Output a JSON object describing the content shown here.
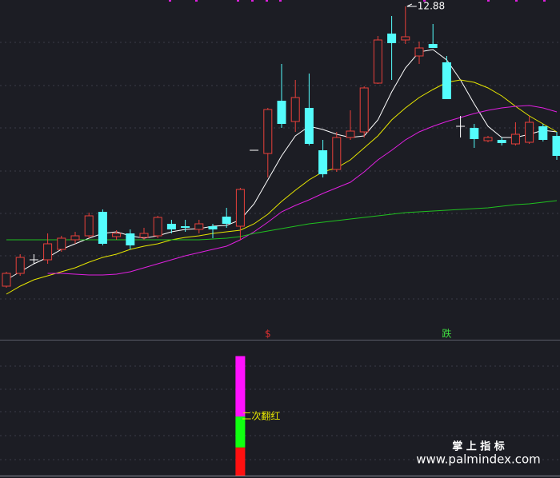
{
  "chart_data": [
    {
      "type": "candlestick",
      "ylim": [
        4.5,
        13.04
      ],
      "high_label": 12.88,
      "up_color": "#e8403a",
      "down_color": "#54fcfc",
      "doji_color": "#ffffff",
      "candles": {
        "open": [
          5.88,
          6.2,
          6.54,
          6.54,
          6.8,
          7.04,
          7.14,
          7.74,
          7.12,
          7.2,
          7.1,
          7.14,
          7.44,
          7.38,
          7.3,
          7.38,
          7.62,
          7.38,
          9.28,
          9.2,
          10.52,
          10.0,
          10.34,
          9.28,
          8.8,
          9.6,
          9.74,
          10.96,
          12.2,
          12.04,
          11.64,
          11.94,
          11.48,
          9.88,
          9.84,
          9.52,
          9.54,
          9.44,
          9.48,
          9.88,
          9.64
        ],
        "close": [
          6.2,
          6.6,
          6.54,
          6.94,
          7.08,
          7.14,
          7.64,
          6.94,
          7.2,
          6.9,
          7.2,
          7.6,
          7.3,
          7.34,
          7.44,
          7.3,
          7.44,
          8.3,
          9.28,
          10.3,
          9.94,
          10.6,
          9.44,
          8.68,
          9.6,
          9.76,
          10.84,
          12.04,
          11.96,
          12.12,
          11.84,
          11.84,
          10.56,
          9.88,
          9.56,
          9.6,
          9.46,
          9.68,
          9.98,
          9.54,
          9.14
        ],
        "high": [
          6.24,
          6.68,
          6.68,
          7.2,
          7.14,
          7.24,
          7.72,
          7.8,
          7.28,
          7.3,
          7.34,
          7.64,
          7.54,
          7.54,
          7.54,
          7.44,
          7.84,
          8.34,
          9.28,
          10.34,
          11.44,
          11.04,
          11.2,
          9.54,
          9.74,
          10.28,
          10.88,
          12.14,
          12.64,
          12.88,
          12.0,
          12.44,
          11.64,
          10.14,
          9.94,
          9.64,
          9.6,
          9.98,
          10.14,
          9.94,
          9.74
        ],
        "low": [
          5.84,
          6.14,
          6.44,
          6.44,
          6.74,
          6.94,
          7.08,
          6.9,
          7.04,
          6.8,
          7.04,
          7.08,
          7.2,
          7.24,
          7.2,
          7.08,
          7.34,
          7.04,
          9.28,
          8.6,
          9.84,
          9.74,
          9.4,
          8.6,
          8.74,
          9.54,
          9.6,
          10.94,
          11.04,
          11.94,
          11.44,
          11.84,
          10.56,
          9.6,
          9.34,
          9.48,
          9.4,
          9.4,
          9.44,
          9.5,
          9.04
        ]
      },
      "moving_averages": [
        {
          "color": "#ffffff",
          "values": [
            6.04,
            6.24,
            6.44,
            6.6,
            6.8,
            6.94,
            7.08,
            7.2,
            7.24,
            7.14,
            7.08,
            7.14,
            7.24,
            7.3,
            7.32,
            7.38,
            7.4,
            7.54,
            7.94,
            8.54,
            9.14,
            9.64,
            9.88,
            9.8,
            9.68,
            9.6,
            9.64,
            10.04,
            10.74,
            11.34,
            11.74,
            11.8,
            11.54,
            11.04,
            10.44,
            9.88,
            9.6,
            9.6,
            9.68,
            9.78,
            9.74
          ]
        },
        {
          "color": "#e6e600",
          "values": [
            5.68,
            5.88,
            6.04,
            6.14,
            6.24,
            6.34,
            6.48,
            6.6,
            6.68,
            6.8,
            6.88,
            6.94,
            7.04,
            7.1,
            7.14,
            7.2,
            7.24,
            7.28,
            7.44,
            7.68,
            8.0,
            8.28,
            8.54,
            8.74,
            8.84,
            9.04,
            9.34,
            9.64,
            10.04,
            10.34,
            10.6,
            10.8,
            10.98,
            11.04,
            10.98,
            10.84,
            10.64,
            10.38,
            10.14,
            9.94,
            9.74
          ]
        },
        {
          "color": "#e020e0",
          "values": [
            null,
            null,
            null,
            6.2,
            6.2,
            6.18,
            6.16,
            6.16,
            6.18,
            6.24,
            6.34,
            6.44,
            6.54,
            6.64,
            6.72,
            6.8,
            6.88,
            7.04,
            7.24,
            7.48,
            7.74,
            7.9,
            8.04,
            8.2,
            8.34,
            8.48,
            8.74,
            9.04,
            9.28,
            9.54,
            9.74,
            9.88,
            10.0,
            10.1,
            10.2,
            10.28,
            10.34,
            10.38,
            10.4,
            10.34,
            10.24
          ]
        },
        {
          "color": "#20c020",
          "values": [
            7.04,
            7.04,
            7.04,
            7.04,
            7.04,
            7.04,
            7.04,
            7.04,
            7.04,
            7.04,
            7.04,
            7.04,
            7.04,
            7.04,
            7.04,
            7.06,
            7.08,
            7.12,
            7.2,
            7.26,
            7.32,
            7.38,
            7.44,
            7.48,
            7.52,
            7.56,
            7.6,
            7.64,
            7.68,
            7.72,
            7.74,
            7.76,
            7.78,
            7.8,
            7.82,
            7.84,
            7.88,
            7.92,
            7.94,
            7.98,
            8.02
          ]
        }
      ],
      "signals": [
        null,
        null,
        null,
        null,
        null,
        null,
        null,
        null,
        null,
        null,
        null,
        null,
        null,
        null,
        null,
        null,
        null,
        null,
        null,
        {
          "text": "$",
          "color": "#e03030"
        },
        null,
        null,
        null,
        null,
        null,
        null,
        null,
        null,
        null,
        null,
        null,
        null,
        {
          "text": "跌",
          "color": "#40e040"
        },
        null,
        null,
        null,
        null,
        null,
        null,
        null,
        null
      ]
    },
    {
      "type": "stacked_bar",
      "ylim": [
        0,
        100
      ],
      "annotation": "二次翻红",
      "annotation_color": "#e6e600",
      "series": [
        {
          "color": "#ff1010",
          "values": [
            null,
            null,
            null,
            null,
            null,
            null,
            null,
            null,
            null,
            null,
            null,
            null,
            null,
            null,
            null,
            null,
            null,
            21,
            null,
            null,
            null,
            null,
            null,
            null,
            null,
            null,
            null,
            null,
            null,
            null,
            null,
            null,
            null,
            null,
            null,
            null,
            null,
            null,
            null,
            null,
            null
          ]
        },
        {
          "color": "#10ff10",
          "values": [
            null,
            null,
            null,
            null,
            null,
            null,
            null,
            null,
            null,
            null,
            null,
            null,
            null,
            null,
            null,
            null,
            null,
            23,
            null,
            null,
            null,
            null,
            null,
            null,
            null,
            null,
            null,
            null,
            null,
            null,
            null,
            null,
            null,
            null,
            null,
            null,
            null,
            null,
            null,
            null,
            null
          ]
        },
        {
          "color": "#ff10ff",
          "values": [
            null,
            null,
            null,
            null,
            null,
            null,
            null,
            null,
            null,
            null,
            null,
            null,
            null,
            null,
            null,
            null,
            null,
            45,
            null,
            null,
            null,
            null,
            null,
            null,
            null,
            null,
            null,
            null,
            null,
            null,
            null,
            null,
            null,
            null,
            null,
            null,
            null,
            null,
            null,
            null,
            null
          ]
        }
      ]
    }
  ],
  "watermark": {
    "title": "掌 上 指 标",
    "url": "www.palmindex.com"
  }
}
